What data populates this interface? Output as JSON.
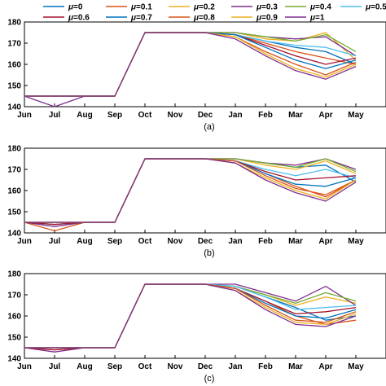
{
  "legend": {
    "entries": [
      {
        "symbol": "μ",
        "value": "=0"
      },
      {
        "symbol": "μ",
        "value": "=0.1"
      },
      {
        "symbol": "μ",
        "value": "=0.2"
      },
      {
        "symbol": "μ",
        "value": "=0.3"
      },
      {
        "symbol": "μ",
        "value": "=0.4"
      },
      {
        "symbol": "μ",
        "value": "=0.5"
      },
      {
        "symbol": "μ",
        "value": "=0.6"
      },
      {
        "symbol": "μ",
        "value": "=0.7"
      },
      {
        "symbol": "μ",
        "value": "=0.8"
      },
      {
        "symbol": "μ",
        "value": "=0.9"
      },
      {
        "symbol": "μ",
        "value": "=1"
      }
    ]
  },
  "chart_data": [
    {
      "type": "line",
      "panel_label": "(a)",
      "categories": [
        "Jun",
        "Jul",
        "Aug",
        "Sep",
        "Oct",
        "Nov",
        "Dec",
        "Jan",
        "Feb",
        "Mar",
        "Apr",
        "May"
      ],
      "ylim": [
        140,
        180
      ],
      "yticks": [
        140,
        150,
        160,
        170,
        180
      ],
      "grid": false,
      "series": [
        {
          "name": "μ=0",
          "color": "#0072BD",
          "values": [
            145,
            145,
            145,
            145,
            175,
            175,
            175,
            174,
            171,
            168,
            166,
            160
          ]
        },
        {
          "name": "μ=0.1",
          "color": "#D95319",
          "values": [
            145,
            145,
            145,
            145,
            175,
            175,
            175,
            174,
            170,
            166,
            163,
            160
          ]
        },
        {
          "name": "μ=0.2",
          "color": "#EDB120",
          "values": [
            145,
            145,
            145,
            145,
            175,
            175,
            175,
            175,
            172,
            171,
            175,
            162
          ]
        },
        {
          "name": "μ=0.3",
          "color": "#7E2F8E",
          "values": [
            145,
            140,
            145,
            145,
            175,
            175,
            175,
            175,
            173,
            172,
            173,
            164
          ]
        },
        {
          "name": "μ=0.4",
          "color": "#77AC30",
          "values": [
            145,
            145,
            145,
            145,
            175,
            175,
            175,
            175,
            173,
            171,
            174,
            166
          ]
        },
        {
          "name": "μ=0.5",
          "color": "#4DBEEE",
          "values": [
            145,
            145,
            145,
            145,
            175,
            175,
            175,
            174,
            171,
            169,
            168,
            164
          ]
        },
        {
          "name": "μ=0.6",
          "color": "#A2142F",
          "values": [
            145,
            145,
            145,
            145,
            175,
            175,
            175,
            174,
            169,
            164,
            160,
            163
          ]
        },
        {
          "name": "μ=0.7",
          "color": "#0072BD",
          "values": [
            145,
            145,
            145,
            145,
            175,
            175,
            175,
            174,
            168,
            162,
            158,
            162
          ]
        },
        {
          "name": "μ=0.8",
          "color": "#D95319",
          "values": [
            145,
            145,
            145,
            145,
            175,
            175,
            175,
            173,
            166,
            160,
            155,
            161
          ]
        },
        {
          "name": "μ=0.9",
          "color": "#EDB120",
          "values": [
            145,
            145,
            145,
            145,
            175,
            175,
            175,
            173,
            165,
            158,
            154,
            160
          ]
        },
        {
          "name": "μ=1",
          "color": "#7E2F8E",
          "values": [
            145,
            145,
            145,
            145,
            175,
            175,
            175,
            172,
            164,
            157,
            153,
            159
          ]
        }
      ]
    },
    {
      "type": "line",
      "panel_label": "(b)",
      "categories": [
        "Jun",
        "Jul",
        "Aug",
        "Sep",
        "Oct",
        "Nov",
        "Dec",
        "Jan",
        "Feb",
        "Mar",
        "Apr",
        "May"
      ],
      "ylim": [
        140,
        180
      ],
      "yticks": [
        140,
        150,
        160,
        170,
        180
      ],
      "grid": false,
      "series": [
        {
          "name": "μ=0",
          "color": "#0072BD",
          "values": [
            145,
            144,
            145,
            145,
            175,
            175,
            175,
            175,
            173,
            171,
            172,
            164
          ]
        },
        {
          "name": "μ=0.1",
          "color": "#D95319",
          "values": [
            145,
            141,
            145,
            145,
            175,
            175,
            175,
            174,
            168,
            162,
            157,
            165
          ]
        },
        {
          "name": "μ=0.2",
          "color": "#EDB120",
          "values": [
            145,
            145,
            145,
            145,
            175,
            175,
            175,
            175,
            172,
            170,
            174,
            168
          ]
        },
        {
          "name": "μ=0.3",
          "color": "#7E2F8E",
          "values": [
            145,
            143,
            145,
            145,
            175,
            175,
            175,
            175,
            173,
            172,
            175,
            170
          ]
        },
        {
          "name": "μ=0.4",
          "color": "#77AC30",
          "values": [
            145,
            144,
            145,
            145,
            175,
            175,
            175,
            175,
            173,
            171,
            175,
            169
          ]
        },
        {
          "name": "μ=0.5",
          "color": "#4DBEEE",
          "values": [
            145,
            145,
            145,
            145,
            175,
            175,
            175,
            174,
            170,
            167,
            170,
            166
          ]
        },
        {
          "name": "μ=0.6",
          "color": "#A2142F",
          "values": [
            145,
            144,
            145,
            145,
            175,
            175,
            175,
            174,
            169,
            165,
            166,
            167
          ]
        },
        {
          "name": "μ=0.7",
          "color": "#0072BD",
          "values": [
            145,
            145,
            145,
            145,
            175,
            175,
            175,
            174,
            168,
            163,
            162,
            166
          ]
        },
        {
          "name": "μ=0.8",
          "color": "#D95319",
          "values": [
            145,
            145,
            145,
            145,
            175,
            175,
            175,
            174,
            167,
            161,
            158,
            165
          ]
        },
        {
          "name": "μ=0.9",
          "color": "#EDB120",
          "values": [
            145,
            145,
            145,
            145,
            175,
            175,
            175,
            173,
            166,
            160,
            156,
            165
          ]
        },
        {
          "name": "μ=1",
          "color": "#7E2F8E",
          "values": [
            145,
            145,
            145,
            145,
            175,
            175,
            175,
            173,
            165,
            159,
            155,
            164
          ]
        }
      ]
    },
    {
      "type": "line",
      "panel_label": "(c)",
      "categories": [
        "Jun",
        "Jul",
        "Aug",
        "Sep",
        "Oct",
        "Nov",
        "Dec",
        "Jan",
        "Feb",
        "Mar",
        "Apr",
        "May"
      ],
      "ylim": [
        140,
        180
      ],
      "yticks": [
        140,
        150,
        160,
        170,
        180
      ],
      "grid": false,
      "series": [
        {
          "name": "μ=0",
          "color": "#0072BD",
          "values": [
            145,
            145,
            145,
            145,
            175,
            175,
            175,
            174,
            169,
            164,
            158,
            160
          ]
        },
        {
          "name": "μ=0.1",
          "color": "#D95319",
          "values": [
            145,
            144,
            145,
            145,
            175,
            175,
            175,
            173,
            167,
            160,
            156,
            158
          ]
        },
        {
          "name": "μ=0.2",
          "color": "#EDB120",
          "values": [
            145,
            145,
            145,
            145,
            175,
            175,
            175,
            174,
            170,
            165,
            169,
            166
          ]
        },
        {
          "name": "μ=0.3",
          "color": "#7E2F8E",
          "values": [
            145,
            143,
            145,
            145,
            175,
            175,
            175,
            175,
            171,
            167,
            174,
            165
          ]
        },
        {
          "name": "μ=0.4",
          "color": "#77AC30",
          "values": [
            145,
            145,
            145,
            145,
            175,
            175,
            175,
            174,
            170,
            166,
            171,
            167
          ]
        },
        {
          "name": "μ=0.5",
          "color": "#4DBEEE",
          "values": [
            145,
            145,
            145,
            145,
            175,
            175,
            175,
            174,
            169,
            163,
            164,
            165
          ]
        },
        {
          "name": "μ=0.6",
          "color": "#A2142F",
          "values": [
            145,
            144,
            145,
            145,
            175,
            175,
            175,
            173,
            167,
            161,
            162,
            164
          ]
        },
        {
          "name": "μ=0.7",
          "color": "#0072BD",
          "values": [
            145,
            145,
            145,
            145,
            175,
            175,
            175,
            173,
            166,
            160,
            159,
            163
          ]
        },
        {
          "name": "μ=0.8",
          "color": "#D95319",
          "values": [
            145,
            145,
            145,
            145,
            175,
            175,
            175,
            173,
            165,
            158,
            157,
            162
          ]
        },
        {
          "name": "μ=0.9",
          "color": "#EDB120",
          "values": [
            145,
            145,
            145,
            145,
            175,
            175,
            175,
            172,
            164,
            157,
            156,
            161
          ]
        },
        {
          "name": "μ=1",
          "color": "#7E2F8E",
          "values": [
            145,
            145,
            145,
            145,
            175,
            175,
            175,
            172,
            163,
            156,
            155,
            160
          ]
        }
      ]
    }
  ]
}
